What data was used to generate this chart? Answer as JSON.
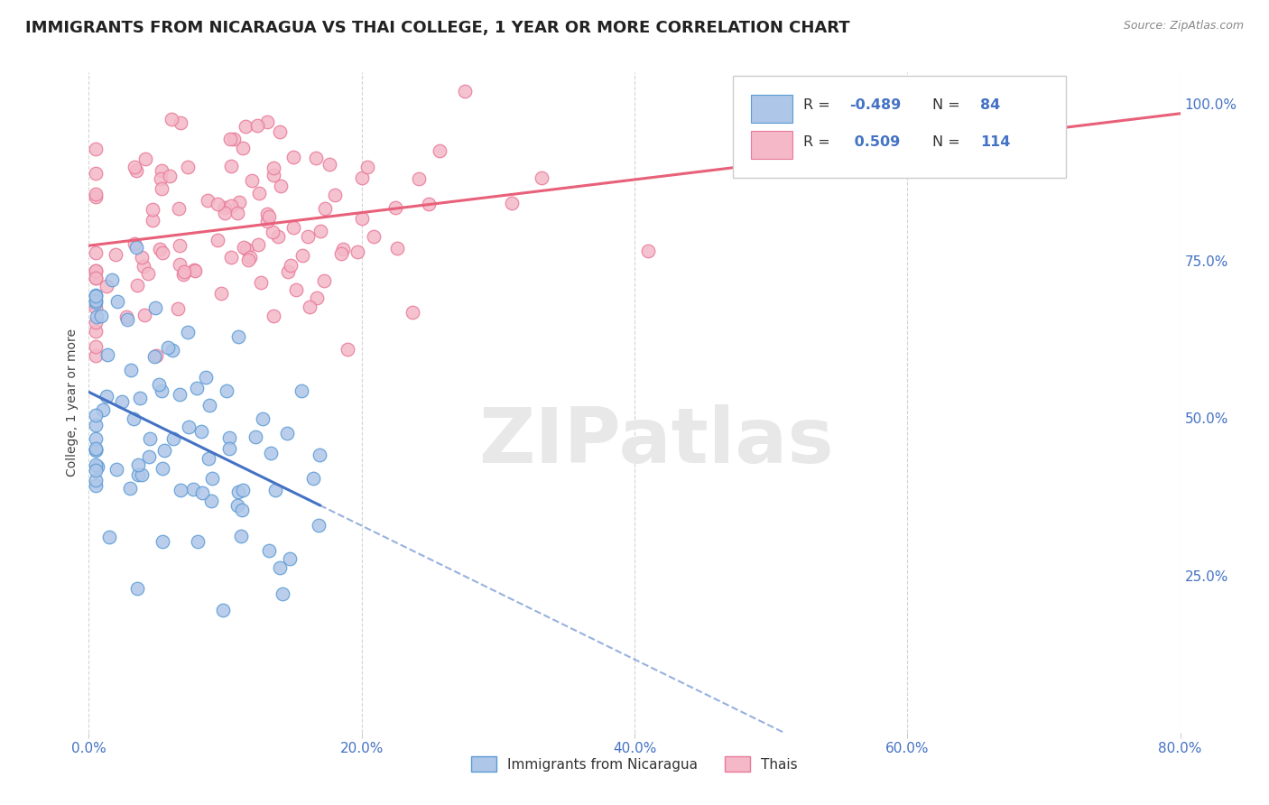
{
  "title": "IMMIGRANTS FROM NICARAGUA VS THAI COLLEGE, 1 YEAR OR MORE CORRELATION CHART",
  "source_text": "Source: ZipAtlas.com",
  "ylabel": "College, 1 year or more",
  "xlim": [
    0.0,
    0.8
  ],
  "ylim": [
    0.0,
    1.05
  ],
  "xtick_labels": [
    "0.0%",
    "20.0%",
    "40.0%",
    "60.0%",
    "80.0%"
  ],
  "xtick_vals": [
    0.0,
    0.2,
    0.4,
    0.6,
    0.8
  ],
  "ytick_labels_right": [
    "25.0%",
    "50.0%",
    "75.0%",
    "100.0%"
  ],
  "ytick_vals_right": [
    0.25,
    0.5,
    0.75,
    1.0
  ],
  "nicaragua_color": "#aec6e8",
  "nicaragua_edge": "#5b9bd5",
  "thai_color": "#f4b8c8",
  "thai_edge": "#e87a98",
  "line_nicaragua_color": "#4472c4",
  "line_thai_color": "#e8607a",
  "legend_labels": [
    "Immigrants from Nicaragua",
    "Thais"
  ],
  "R_nicaragua": -0.489,
  "N_nicaragua": 84,
  "R_thai": 0.509,
  "N_thai": 114,
  "title_fontsize": 13,
  "axis_label_fontsize": 10,
  "tick_fontsize": 11,
  "watermark_text": "ZIPatlas",
  "background_color": "#ffffff",
  "grid_color": "#d0d0d0"
}
